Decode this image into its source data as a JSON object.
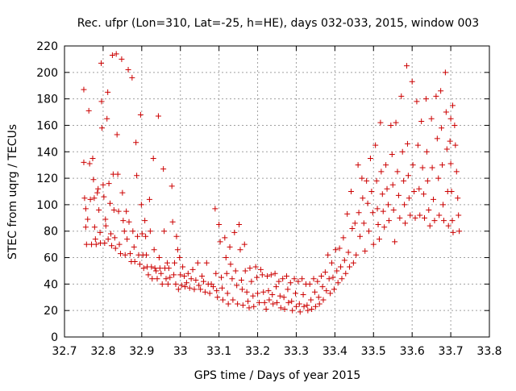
{
  "chart_data": {
    "type": "scatter",
    "title": "Rec. ufpr (Lon=310, Lat=-25, h=HE), days 032-033, 2015, window 003",
    "xlabel": "GPS time / Days of year 2015",
    "ylabel": "STEC from uqrg / TECUs",
    "xlim": [
      32.7,
      33.8
    ],
    "ylim": [
      0,
      220
    ],
    "x_ticks": [
      "32.7",
      "32.8",
      "32.9",
      "33",
      "33.1",
      "33.2",
      "33.3",
      "33.4",
      "33.5",
      "33.6",
      "33.7",
      "33.8"
    ],
    "y_ticks": [
      "0",
      "20",
      "40",
      "60",
      "80",
      "100",
      "120",
      "140",
      "160",
      "180",
      "200",
      "220"
    ],
    "grid": true,
    "marker": "plus",
    "color": "#cc0000",
    "points": [
      [
        32.75,
        187
      ],
      [
        32.75,
        132
      ],
      [
        32.752,
        105
      ],
      [
        32.755,
        97
      ],
      [
        32.755,
        83
      ],
      [
        32.757,
        70
      ],
      [
        32.76,
        89
      ],
      [
        32.763,
        171
      ],
      [
        32.765,
        131
      ],
      [
        32.767,
        104
      ],
      [
        32.77,
        70
      ],
      [
        32.773,
        135
      ],
      [
        32.775,
        119
      ],
      [
        32.777,
        105
      ],
      [
        32.778,
        83
      ],
      [
        32.78,
        74
      ],
      [
        32.782,
        70
      ],
      [
        32.785,
        109
      ],
      [
        32.787,
        112
      ],
      [
        32.789,
        96
      ],
      [
        32.792,
        79
      ],
      [
        32.793,
        71
      ],
      [
        32.795,
        207
      ],
      [
        32.796,
        178
      ],
      [
        32.797,
        158
      ],
      [
        32.8,
        115
      ],
      [
        32.802,
        106
      ],
      [
        32.804,
        71
      ],
      [
        32.806,
        89
      ],
      [
        32.807,
        84
      ],
      [
        32.81,
        165
      ],
      [
        32.812,
        185
      ],
      [
        32.813,
        74
      ],
      [
        32.815,
        116
      ],
      [
        32.818,
        101
      ],
      [
        32.82,
        78
      ],
      [
        32.822,
        69
      ],
      [
        32.824,
        213
      ],
      [
        32.826,
        123
      ],
      [
        32.828,
        96
      ],
      [
        32.83,
        75
      ],
      [
        32.832,
        67
      ],
      [
        32.834,
        214
      ],
      [
        32.836,
        153
      ],
      [
        32.838,
        123
      ],
      [
        32.84,
        95
      ],
      [
        32.842,
        70
      ],
      [
        32.845,
        63
      ],
      [
        32.848,
        210
      ],
      [
        32.85,
        109
      ],
      [
        32.852,
        88
      ],
      [
        32.855,
        80
      ],
      [
        32.857,
        62
      ],
      [
        32.86,
        95
      ],
      [
        32.862,
        74
      ],
      [
        32.865,
        202
      ],
      [
        32.867,
        87
      ],
      [
        32.87,
        63
      ],
      [
        32.873,
        57
      ],
      [
        32.875,
        196
      ],
      [
        32.877,
        80
      ],
      [
        32.88,
        68
      ],
      [
        32.882,
        57
      ],
      [
        32.885,
        147
      ],
      [
        32.887,
        122
      ],
      [
        32.889,
        76
      ],
      [
        32.892,
        62
      ],
      [
        32.895,
        55
      ],
      [
        32.897,
        168
      ],
      [
        32.899,
        100
      ],
      [
        32.901,
        78
      ],
      [
        32.903,
        62
      ],
      [
        32.905,
        52
      ],
      [
        32.908,
        88
      ],
      [
        32.91,
        76
      ],
      [
        32.912,
        62
      ],
      [
        32.914,
        53
      ],
      [
        32.917,
        47
      ],
      [
        32.92,
        104
      ],
      [
        32.922,
        80
      ],
      [
        32.925,
        53
      ],
      [
        32.927,
        44
      ],
      [
        32.93,
        135
      ],
      [
        32.932,
        66
      ],
      [
        32.934,
        52
      ],
      [
        32.937,
        50
      ],
      [
        32.94,
        44
      ],
      [
        32.943,
        167
      ],
      [
        32.945,
        60
      ],
      [
        32.947,
        52
      ],
      [
        32.95,
        48
      ],
      [
        32.953,
        40
      ],
      [
        32.956,
        127
      ],
      [
        32.958,
        80
      ],
      [
        32.96,
        52
      ],
      [
        32.963,
        44
      ],
      [
        32.966,
        56
      ],
      [
        32.968,
        40
      ],
      [
        32.97,
        52
      ],
      [
        32.973,
        45
      ],
      [
        32.978,
        114
      ],
      [
        32.98,
        87
      ],
      [
        32.983,
        47
      ],
      [
        32.985,
        56
      ],
      [
        32.988,
        40
      ],
      [
        32.99,
        76
      ],
      [
        32.993,
        66
      ],
      [
        32.995,
        36
      ],
      [
        32.998,
        60
      ],
      [
        33.0,
        47
      ],
      [
        33.003,
        39
      ],
      [
        33.006,
        53
      ],
      [
        33.01,
        46
      ],
      [
        33.012,
        38
      ],
      [
        33.016,
        41
      ],
      [
        33.02,
        48
      ],
      [
        33.024,
        37
      ],
      [
        33.028,
        44
      ],
      [
        33.032,
        51
      ],
      [
        33.036,
        36
      ],
      [
        33.04,
        43
      ],
      [
        33.045,
        56
      ],
      [
        33.048,
        39
      ],
      [
        33.052,
        36
      ],
      [
        33.056,
        46
      ],
      [
        33.06,
        42
      ],
      [
        33.064,
        34
      ],
      [
        33.068,
        56
      ],
      [
        33.072,
        40
      ],
      [
        33.076,
        33
      ],
      [
        33.08,
        40
      ],
      [
        33.085,
        38
      ],
      [
        33.09,
        97
      ],
      [
        33.092,
        48
      ],
      [
        33.094,
        35
      ],
      [
        33.096,
        30
      ],
      [
        33.1,
        85
      ],
      [
        33.103,
        72
      ],
      [
        33.106,
        45
      ],
      [
        33.108,
        37
      ],
      [
        33.11,
        28
      ],
      [
        33.115,
        75
      ],
      [
        33.118,
        60
      ],
      [
        33.12,
        48
      ],
      [
        33.122,
        33
      ],
      [
        33.124,
        25
      ],
      [
        33.128,
        68
      ],
      [
        33.13,
        55
      ],
      [
        33.134,
        44
      ],
      [
        33.136,
        28
      ],
      [
        33.14,
        79
      ],
      [
        33.143,
        50
      ],
      [
        33.146,
        39
      ],
      [
        33.148,
        25
      ],
      [
        33.152,
        85
      ],
      [
        33.155,
        66
      ],
      [
        33.158,
        43
      ],
      [
        33.16,
        36
      ],
      [
        33.162,
        24
      ],
      [
        33.166,
        70
      ],
      [
        33.168,
        50
      ],
      [
        33.172,
        34
      ],
      [
        33.175,
        27
      ],
      [
        33.178,
        22
      ],
      [
        33.18,
        52
      ],
      [
        33.184,
        42
      ],
      [
        33.188,
        31
      ],
      [
        33.19,
        23
      ],
      [
        33.195,
        53
      ],
      [
        33.198,
        45
      ],
      [
        33.2,
        33
      ],
      [
        33.204,
        26
      ],
      [
        33.208,
        51
      ],
      [
        33.212,
        47
      ],
      [
        33.215,
        34
      ],
      [
        33.218,
        26
      ],
      [
        33.222,
        21
      ],
      [
        33.225,
        46
      ],
      [
        33.228,
        35
      ],
      [
        33.23,
        28
      ],
      [
        33.235,
        47
      ],
      [
        33.238,
        32
      ],
      [
        33.24,
        25
      ],
      [
        33.245,
        48
      ],
      [
        33.248,
        38
      ],
      [
        33.25,
        26
      ],
      [
        33.255,
        42
      ],
      [
        33.258,
        31
      ],
      [
        33.26,
        22
      ],
      [
        33.265,
        44
      ],
      [
        33.268,
        30
      ],
      [
        33.27,
        21
      ],
      [
        33.275,
        46
      ],
      [
        33.278,
        36
      ],
      [
        33.28,
        26
      ],
      [
        33.285,
        41
      ],
      [
        33.288,
        27
      ],
      [
        33.29,
        20
      ],
      [
        33.295,
        44
      ],
      [
        33.298,
        33
      ],
      [
        33.3,
        23
      ],
      [
        33.305,
        42
      ],
      [
        33.308,
        25
      ],
      [
        33.31,
        19
      ],
      [
        33.315,
        44
      ],
      [
        33.318,
        32
      ],
      [
        33.32,
        23
      ],
      [
        33.325,
        40
      ],
      [
        33.328,
        24
      ],
      [
        33.33,
        20
      ],
      [
        33.335,
        40
      ],
      [
        33.338,
        28
      ],
      [
        33.34,
        21
      ],
      [
        33.345,
        44
      ],
      [
        33.348,
        34
      ],
      [
        33.35,
        23
      ],
      [
        33.355,
        42
      ],
      [
        33.358,
        30
      ],
      [
        33.36,
        25
      ],
      [
        33.365,
        46
      ],
      [
        33.368,
        38
      ],
      [
        33.37,
        28
      ],
      [
        33.375,
        49
      ],
      [
        33.378,
        35
      ],
      [
        33.382,
        62
      ],
      [
        33.385,
        44
      ],
      [
        33.388,
        33
      ],
      [
        33.392,
        56
      ],
      [
        33.395,
        45
      ],
      [
        33.398,
        36
      ],
      [
        33.402,
        66
      ],
      [
        33.405,
        50
      ],
      [
        33.408,
        41
      ],
      [
        33.412,
        67
      ],
      [
        33.415,
        53
      ],
      [
        33.418,
        44
      ],
      [
        33.422,
        75
      ],
      [
        33.425,
        58
      ],
      [
        33.428,
        48
      ],
      [
        33.432,
        93
      ],
      [
        33.435,
        64
      ],
      [
        33.438,
        53
      ],
      [
        33.442,
        110
      ],
      [
        33.445,
        82
      ],
      [
        33.448,
        56
      ],
      [
        33.452,
        86
      ],
      [
        33.455,
        62
      ],
      [
        33.46,
        130
      ],
      [
        33.462,
        94
      ],
      [
        33.465,
        76
      ],
      [
        33.47,
        120
      ],
      [
        33.472,
        105
      ],
      [
        33.475,
        86
      ],
      [
        33.478,
        65
      ],
      [
        33.482,
        118
      ],
      [
        33.485,
        101
      ],
      [
        33.488,
        80
      ],
      [
        33.492,
        135
      ],
      [
        33.495,
        110
      ],
      [
        33.498,
        94
      ],
      [
        33.5,
        70
      ],
      [
        33.505,
        145
      ],
      [
        33.508,
        118
      ],
      [
        33.51,
        97
      ],
      [
        33.512,
        85
      ],
      [
        33.515,
        74
      ],
      [
        33.518,
        162
      ],
      [
        33.52,
        125
      ],
      [
        33.523,
        108
      ],
      [
        33.525,
        95
      ],
      [
        33.528,
        83
      ],
      [
        33.532,
        130
      ],
      [
        33.535,
        112
      ],
      [
        33.538,
        100
      ],
      [
        33.54,
        88
      ],
      [
        33.545,
        160
      ],
      [
        33.548,
        138
      ],
      [
        33.55,
        115
      ],
      [
        33.552,
        96
      ],
      [
        33.555,
        72
      ],
      [
        33.558,
        162
      ],
      [
        33.562,
        125
      ],
      [
        33.565,
        107
      ],
      [
        33.568,
        90
      ],
      [
        33.572,
        182
      ],
      [
        33.575,
        140
      ],
      [
        33.578,
        118
      ],
      [
        33.58,
        100
      ],
      [
        33.582,
        86
      ],
      [
        33.586,
        205
      ],
      [
        33.588,
        146
      ],
      [
        33.59,
        122
      ],
      [
        33.592,
        105
      ],
      [
        33.595,
        92
      ],
      [
        33.6,
        193
      ],
      [
        33.602,
        130
      ],
      [
        33.605,
        110
      ],
      [
        33.608,
        90
      ],
      [
        33.612,
        178
      ],
      [
        33.615,
        145
      ],
      [
        33.618,
        112
      ],
      [
        33.62,
        92
      ],
      [
        33.624,
        163
      ],
      [
        33.627,
        128
      ],
      [
        33.63,
        108
      ],
      [
        33.632,
        90
      ],
      [
        33.636,
        180
      ],
      [
        33.638,
        140
      ],
      [
        33.64,
        118
      ],
      [
        33.643,
        96
      ],
      [
        33.646,
        84
      ],
      [
        33.65,
        165
      ],
      [
        33.652,
        128
      ],
      [
        33.655,
        104
      ],
      [
        33.658,
        88
      ],
      [
        33.662,
        182
      ],
      [
        33.665,
        150
      ],
      [
        33.668,
        120
      ],
      [
        33.67,
        92
      ],
      [
        33.674,
        186
      ],
      [
        33.676,
        158
      ],
      [
        33.678,
        130
      ],
      [
        33.68,
        100
      ],
      [
        33.682,
        88
      ],
      [
        33.686,
        200
      ],
      [
        33.688,
        170
      ],
      [
        33.69,
        142
      ],
      [
        33.692,
        110
      ],
      [
        33.694,
        84
      ],
      [
        33.698,
        148
      ],
      [
        33.7,
        131
      ],
      [
        33.702,
        110
      ],
      [
        33.704,
        88
      ],
      [
        33.706,
        79
      ],
      [
        33.7,
        165
      ],
      [
        33.705,
        175
      ],
      [
        33.71,
        160
      ],
      [
        33.712,
        145
      ],
      [
        33.715,
        125
      ],
      [
        33.718,
        105
      ],
      [
        33.72,
        92
      ],
      [
        33.722,
        80
      ]
    ]
  }
}
